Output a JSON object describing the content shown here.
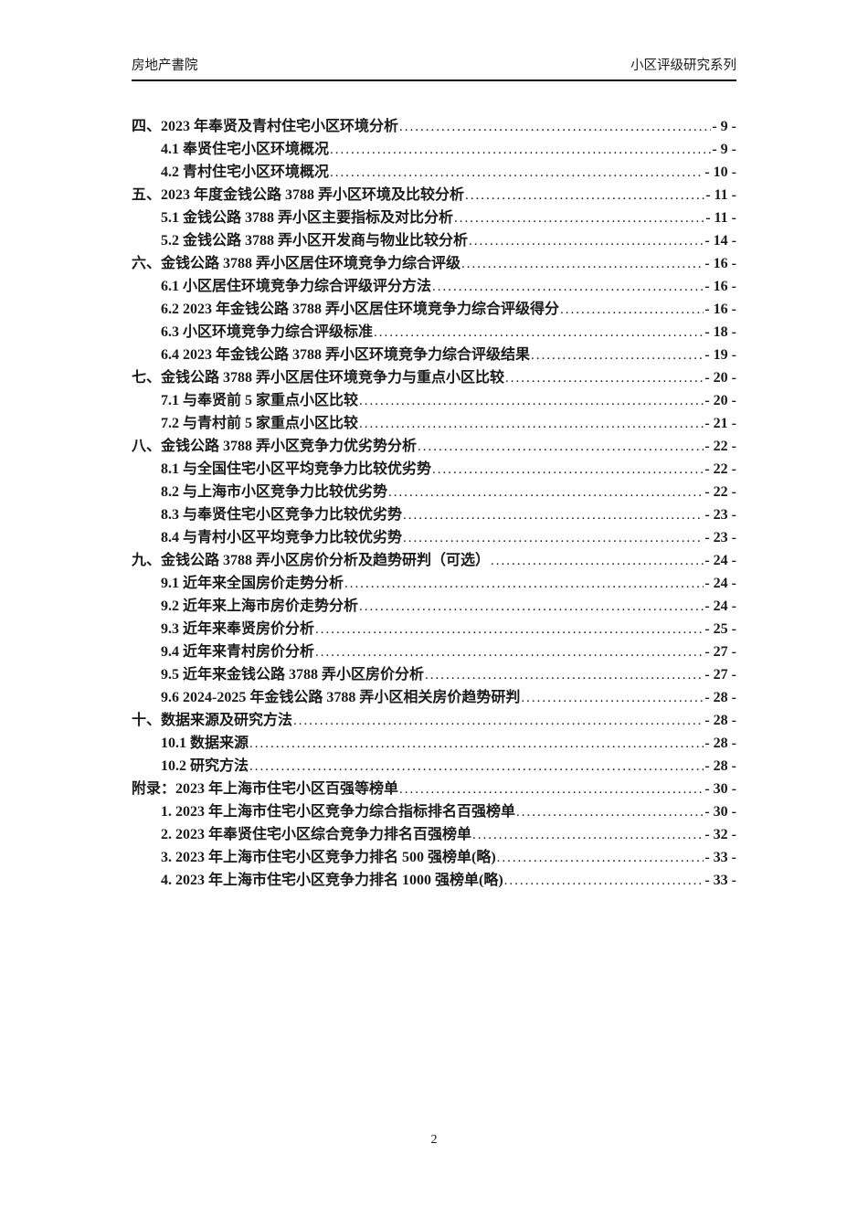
{
  "header": {
    "left": "房地产書院",
    "right": "小区评级研究系列"
  },
  "toc": {
    "entries": [
      {
        "level": 1,
        "label": "四、2023 年奉贤及青村住宅小区环境分析",
        "page": "- 9 -"
      },
      {
        "level": 2,
        "label": "4.1 奉贤住宅小区环境概况",
        "page": "- 9 -"
      },
      {
        "level": 2,
        "label": "4.2 青村住宅小区环境概况",
        "page": "- 10 -"
      },
      {
        "level": 1,
        "label": "五、2023 年度金钱公路 3788 弄小区环境及比较分析",
        "page": "- 11 -"
      },
      {
        "level": 2,
        "label": "5.1 金钱公路 3788 弄小区主要指标及对比分析",
        "page": "- 11 -"
      },
      {
        "level": 2,
        "label": "5.2 金钱公路 3788 弄小区开发商与物业比较分析",
        "page": "- 14 -"
      },
      {
        "level": 1,
        "label": "六、金钱公路 3788 弄小区居住环境竞争力综合评级",
        "page": "- 16 -"
      },
      {
        "level": 2,
        "label": "6.1 小区居住环境竞争力综合评级评分方法",
        "page": "- 16 -"
      },
      {
        "level": 2,
        "label": "6.2 2023 年金钱公路 3788 弄小区居住环境竞争力综合评级得分",
        "page": "- 16 -"
      },
      {
        "level": 2,
        "label": "6.3 小区环境竞争力综合评级标准",
        "page": "- 18 -"
      },
      {
        "level": 2,
        "label": "6.4 2023 年金钱公路 3788 弄小区环境竞争力综合评级结果",
        "page": "- 19 -"
      },
      {
        "level": 1,
        "label": "七、金钱公路 3788 弄小区居住环境竞争力与重点小区比较",
        "page": "- 20 -"
      },
      {
        "level": 2,
        "label": "7.1 与奉贤前 5 家重点小区比较",
        "page": "- 20 -"
      },
      {
        "level": 2,
        "label": "7.2 与青村前 5 家重点小区比较",
        "page": "- 21 -"
      },
      {
        "level": 1,
        "label": "八、金钱公路 3788 弄小区竞争力优劣势分析",
        "page": "- 22 -"
      },
      {
        "level": 2,
        "label": "8.1 与全国住宅小区平均竞争力比较优劣势",
        "page": "- 22 -"
      },
      {
        "level": 2,
        "label": "8.2 与上海市小区竞争力比较优劣势",
        "page": "- 22 -"
      },
      {
        "level": 2,
        "label": "8.3 与奉贤住宅小区竞争力比较优劣势",
        "page": "- 23 -"
      },
      {
        "level": 2,
        "label": "8.4 与青村小区平均竞争力比较优劣势",
        "page": "- 23 -"
      },
      {
        "level": 1,
        "label": "九、金钱公路 3788 弄小区房价分析及趋势研判（可选）",
        "page": "- 24 -"
      },
      {
        "level": 2,
        "label": "9.1 近年来全国房价走势分析",
        "page": "- 24 -"
      },
      {
        "level": 2,
        "label": "9.2 近年来上海市房价走势分析",
        "page": "- 24 -"
      },
      {
        "level": 2,
        "label": "9.3 近年来奉贤房价分析",
        "page": "- 25 -"
      },
      {
        "level": 2,
        "label": "9.4 近年来青村房价分析",
        "page": "- 27 -"
      },
      {
        "level": 2,
        "label": "9.5 近年来金钱公路 3788 弄小区房价分析",
        "page": "- 27 -"
      },
      {
        "level": 2,
        "label": "9.6 2024-2025 年金钱公路 3788 弄小区相关房价趋势研判",
        "page": "- 28 -"
      },
      {
        "level": 1,
        "label": "十、数据来源及研究方法",
        "page": "- 28 -"
      },
      {
        "level": 2,
        "label": "10.1 数据来源",
        "page": "- 28 -"
      },
      {
        "level": 2,
        "label": "10.2 研究方法",
        "page": "- 28 -"
      },
      {
        "level": 1,
        "label": "附录：2023 年上海市住宅小区百强等榜单",
        "page": "- 30 -"
      },
      {
        "level": 2,
        "label": "1. 2023 年上海市住宅小区竞争力综合指标排名百强榜单",
        "page": "- 30 -"
      },
      {
        "level": 2,
        "label": "2. 2023 年奉贤住宅小区综合竞争力排名百强榜单",
        "page": "- 32 -"
      },
      {
        "level": 2,
        "label": "3. 2023 年上海市住宅小区竞争力排名 500 强榜单(略)",
        "page": "- 33 -"
      },
      {
        "level": 2,
        "label": "4. 2023 年上海市住宅小区竞争力排名 1000 强榜单(略)",
        "page": "- 33 -"
      }
    ]
  },
  "footer": {
    "page_number": "2"
  }
}
